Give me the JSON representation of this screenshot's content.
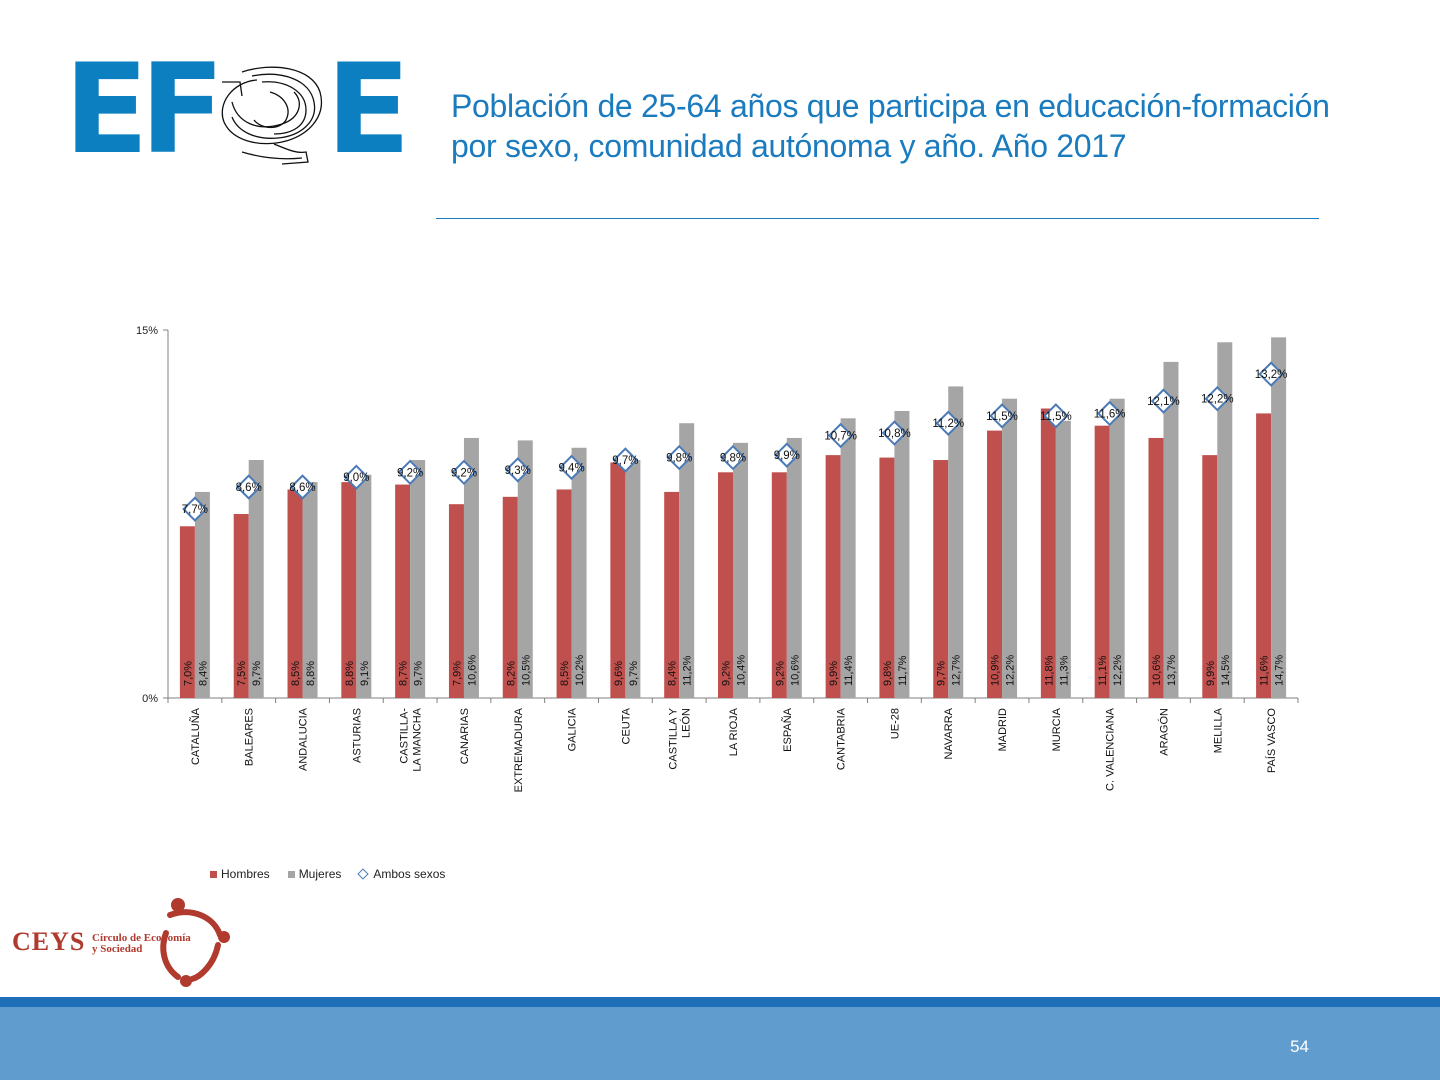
{
  "logo": {
    "letters": [
      "E",
      "F",
      "E"
    ],
    "emblem_icon": "efse-emblem-icon"
  },
  "title": "Población de 25-64 años que participa en educación-formación por sexo, comunidad autónoma y año. Año 2017",
  "chart_data": {
    "type": "bar",
    "categories": [
      "CATALUÑA",
      "BALEARES",
      "ANDALUCIA",
      "ASTURIAS",
      "CASTILLA-LA MANCHA",
      "CANARIAS",
      "EXTREMADURA",
      "GALICIA",
      "CEUTA",
      "CASTILLA Y LEÓN",
      "LA RIOJA",
      "ESPAÑA",
      "CANTABRIA",
      "UE-28",
      "NAVARRA",
      "MADRID",
      "MURCIA",
      "C. VALENCIANA",
      "ARAGÓN",
      "MELILLA",
      "PAÍS VASCO"
    ],
    "category_lines": [
      [
        "CATALUÑA"
      ],
      [
        "BALEARES"
      ],
      [
        "ANDALUCIA"
      ],
      [
        "ASTURIAS"
      ],
      [
        "CASTILLA-",
        "LA MANCHA"
      ],
      [
        "CANARIAS"
      ],
      [
        "EXTREMADURA"
      ],
      [
        "GALICIA"
      ],
      [
        "CEUTA"
      ],
      [
        "CASTILLA Y",
        "LEÓN"
      ],
      [
        "LA RIOJA"
      ],
      [
        "ESPAÑA"
      ],
      [
        "CANTABRIA"
      ],
      [
        "UE-28"
      ],
      [
        "NAVARRA"
      ],
      [
        "MADRID"
      ],
      [
        "MURCIA"
      ],
      [
        "C. VALENCIANA"
      ],
      [
        "ARAGÓN"
      ],
      [
        "MELILLA"
      ],
      [
        "PAÍS VASCO"
      ]
    ],
    "series": [
      {
        "name": "Hombres",
        "kind": "bar",
        "color": "#c0504d",
        "values": [
          7.0,
          7.5,
          8.5,
          8.8,
          8.7,
          7.9,
          8.2,
          8.5,
          9.6,
          8.4,
          9.2,
          9.2,
          9.9,
          9.8,
          9.7,
          10.9,
          11.8,
          11.1,
          10.6,
          9.9,
          11.6
        ],
        "labels": [
          "7,0%",
          "7,5%",
          "8,5%",
          "8,8%",
          "8,7%",
          "7,9%",
          "8,2%",
          "8,5%",
          "9,6%",
          "8,4%",
          "9,2%",
          "9,2%",
          "9,9%",
          "9,8%",
          "9,7%",
          "10,9%",
          "11,8%",
          "11,1%",
          "10,6%",
          "9,9%",
          "11,6%"
        ]
      },
      {
        "name": "Mujeres",
        "kind": "bar",
        "color": "#a5a5a5",
        "values": [
          8.4,
          9.7,
          8.8,
          9.1,
          9.7,
          10.6,
          10.5,
          10.2,
          9.7,
          11.2,
          10.4,
          10.6,
          11.4,
          11.7,
          12.7,
          12.2,
          11.3,
          12.2,
          13.7,
          14.5,
          14.7
        ],
        "labels": [
          "8,4%",
          "9,7%",
          "8,8%",
          "9,1%",
          "9,7%",
          "10,6%",
          "10,5%",
          "10,2%",
          "9,7%",
          "11,2%",
          "10,4%",
          "10,6%",
          "11,4%",
          "11,7%",
          "12,7%",
          "12,2%",
          "11,3%",
          "12,2%",
          "13,7%",
          "14,5%",
          "14,7%"
        ]
      },
      {
        "name": "Ambos sexos",
        "kind": "marker",
        "color": "#4a7bb7",
        "values": [
          7.7,
          8.6,
          8.6,
          9.0,
          9.2,
          9.2,
          9.3,
          9.4,
          9.7,
          9.8,
          9.8,
          9.9,
          10.7,
          10.8,
          11.2,
          11.5,
          11.5,
          11.6,
          12.1,
          12.2,
          13.2
        ],
        "labels": [
          "7,7%",
          "8,6%",
          "8,6%",
          "9,0%",
          "9,2%",
          "9,2%",
          "9,3%",
          "9,4%",
          "9,7%",
          "9,8%",
          "9,8%",
          "9,9%",
          "10,7%",
          "10,8%",
          "11,2%",
          "11,5%",
          "11,5%",
          "11,6%",
          "12,1%",
          "12,2%",
          "13,2%"
        ]
      }
    ],
    "ylim": [
      0,
      15
    ],
    "yticks": [
      {
        "value": 0,
        "label": "0%"
      },
      {
        "value": 15,
        "label": "15%"
      }
    ],
    "grid": false,
    "legend_position": "bottom-left"
  },
  "legend": {
    "hombres": "Hombres",
    "mujeres": "Mujeres",
    "ambos": "Ambos sexos"
  },
  "ceys": {
    "name": "CEYS",
    "line1": "Círculo de Economía",
    "line2": "y Sociedad"
  },
  "page_number": "54"
}
